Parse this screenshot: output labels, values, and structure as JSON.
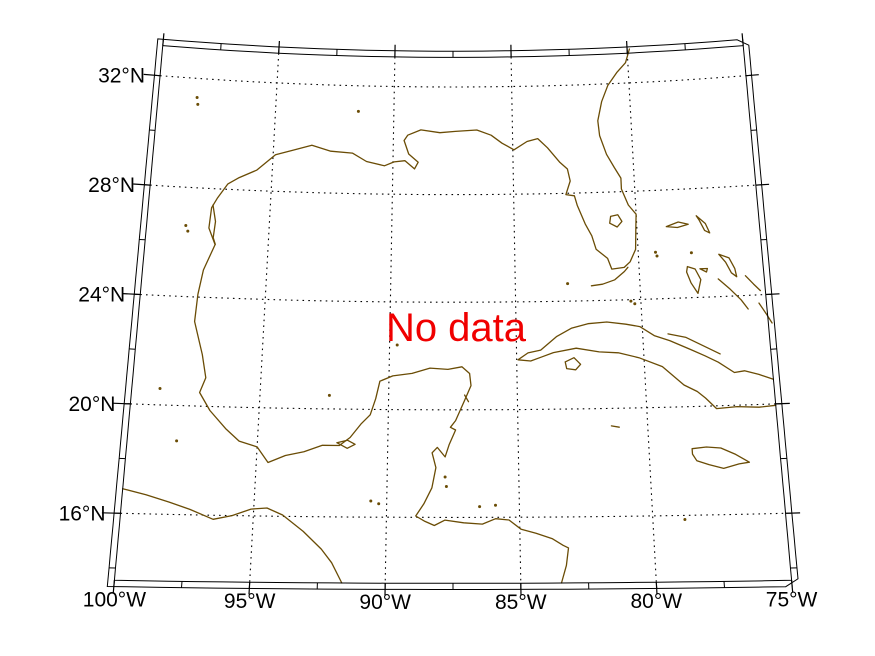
{
  "map": {
    "no_data_label": "No data",
    "colors": {
      "background": "#ffffff",
      "coastline": "#6a4c05",
      "frame": "#000000",
      "graticule": "#000000",
      "tick_label": "#000000",
      "no_data_text": "#f00000"
    },
    "axes": {
      "lat": {
        "tick_values": [
          32,
          28,
          24,
          20,
          16
        ],
        "tick_labels": [
          "32°N",
          "28°N",
          "24°N",
          "20°N",
          "16°N"
        ]
      },
      "lon": {
        "tick_values": [
          -100,
          -95,
          -90,
          -85,
          -80,
          -75
        ],
        "tick_labels": [
          "100°W",
          "95°W",
          "90°W",
          "85°W",
          "80°W",
          "75°W"
        ]
      }
    },
    "graticule": {
      "lat_lines": [
        32,
        28,
        24,
        20,
        16
      ],
      "lon_lines": [
        -95,
        -90,
        -85,
        -80
      ],
      "style": "dotted"
    },
    "coastlines": {
      "us_gulf_atlantic": [
        [
          -97.15,
          25.95
        ],
        [
          -97.45,
          26.55
        ],
        [
          -97.4,
          27.3
        ],
        [
          -97.2,
          27.65
        ],
        [
          -96.8,
          28.2
        ],
        [
          -96.35,
          28.45
        ],
        [
          -95.65,
          28.75
        ],
        [
          -94.9,
          29.35
        ],
        [
          -94.15,
          29.55
        ],
        [
          -93.4,
          29.75
        ],
        [
          -92.6,
          29.55
        ],
        [
          -91.7,
          29.5
        ],
        [
          -91.1,
          29.2
        ],
        [
          -90.35,
          29.05
        ],
        [
          -89.95,
          29.2
        ],
        [
          -89.5,
          29.25
        ],
        [
          -89.1,
          28.95
        ],
        [
          -88.95,
          29.2
        ],
        [
          -89.35,
          29.5
        ],
        [
          -89.55,
          30.0
        ],
        [
          -89.4,
          30.2
        ],
        [
          -88.85,
          30.4
        ],
        [
          -88.05,
          30.3
        ],
        [
          -87.4,
          30.35
        ],
        [
          -86.5,
          30.4
        ],
        [
          -85.9,
          30.2
        ],
        [
          -85.45,
          29.9
        ],
        [
          -84.95,
          29.65
        ],
        [
          -84.4,
          29.95
        ],
        [
          -83.95,
          30.05
        ],
        [
          -83.55,
          29.7
        ],
        [
          -83.05,
          29.15
        ],
        [
          -82.75,
          28.9
        ],
        [
          -82.65,
          28.45
        ],
        [
          -82.85,
          27.95
        ],
        [
          -82.5,
          27.9
        ],
        [
          -82.4,
          27.55
        ],
        [
          -82.1,
          26.85
        ],
        [
          -81.85,
          26.4
        ],
        [
          -81.7,
          25.9
        ],
        [
          -81.25,
          25.55
        ],
        [
          -81.1,
          25.15
        ],
        [
          -80.6,
          25.2
        ],
        [
          -80.35,
          25.4
        ],
        [
          -80.1,
          25.85
        ],
        [
          -80.05,
          26.55
        ],
        [
          -80.0,
          27.15
        ],
        [
          -80.3,
          27.5
        ],
        [
          -80.55,
          28.1
        ],
        [
          -80.55,
          28.5
        ],
        [
          -80.8,
          28.9
        ],
        [
          -81.1,
          29.4
        ],
        [
          -81.35,
          30.1
        ],
        [
          -81.4,
          30.65
        ],
        [
          -81.2,
          31.35
        ],
        [
          -80.9,
          31.95
        ],
        [
          -80.5,
          32.4
        ],
        [
          -80.1,
          32.75
        ],
        [
          -79.9,
          33.25
        ]
      ],
      "mexico_central_america": [
        [
          -97.15,
          25.95
        ],
        [
          -97.55,
          25.0
        ],
        [
          -97.7,
          24.1
        ],
        [
          -97.75,
          23.1
        ],
        [
          -97.5,
          22.35
        ],
        [
          -97.35,
          21.9
        ],
        [
          -97.15,
          21.05
        ],
        [
          -97.35,
          20.5
        ],
        [
          -96.9,
          19.85
        ],
        [
          -96.25,
          19.2
        ],
        [
          -95.7,
          18.75
        ],
        [
          -95.0,
          18.55
        ],
        [
          -94.55,
          17.98
        ],
        [
          -93.9,
          18.25
        ],
        [
          -93.2,
          18.4
        ],
        [
          -92.5,
          18.65
        ],
        [
          -91.85,
          18.65
        ],
        [
          -91.45,
          18.95
        ],
        [
          -91.05,
          19.45
        ],
        [
          -90.7,
          19.8
        ],
        [
          -90.5,
          20.4
        ],
        [
          -90.35,
          21.05
        ],
        [
          -89.85,
          21.25
        ],
        [
          -89.1,
          21.35
        ],
        [
          -88.4,
          21.55
        ],
        [
          -87.7,
          21.5
        ],
        [
          -87.15,
          21.6
        ],
        [
          -86.85,
          21.35
        ],
        [
          -86.8,
          20.9
        ],
        [
          -87.05,
          20.35
        ],
        [
          -87.4,
          19.6
        ],
        [
          -87.6,
          19.35
        ],
        [
          -87.4,
          19.25
        ],
        [
          -87.65,
          18.7
        ],
        [
          -87.8,
          18.25
        ],
        [
          -88.1,
          18.6
        ],
        [
          -88.3,
          18.4
        ],
        [
          -88.15,
          17.85
        ],
        [
          -88.3,
          17.1
        ],
        [
          -88.6,
          16.5
        ],
        [
          -88.9,
          16.05
        ],
        [
          -88.55,
          15.85
        ],
        [
          -88.2,
          15.7
        ],
        [
          -87.8,
          15.9
        ],
        [
          -87.1,
          15.8
        ],
        [
          -86.4,
          15.75
        ],
        [
          -85.9,
          15.95
        ],
        [
          -85.4,
          15.9
        ],
        [
          -84.95,
          15.55
        ],
        [
          -84.4,
          15.4
        ],
        [
          -83.8,
          15.2
        ],
        [
          -83.4,
          14.95
        ],
        [
          -83.2,
          14.85
        ],
        [
          -83.3,
          14.2
        ],
        [
          -83.5,
          13.55
        ]
      ],
      "mexico_pacific": [
        [
          -100.0,
          16.9
        ],
        [
          -99.1,
          16.7
        ],
        [
          -98.2,
          16.45
        ],
        [
          -97.4,
          16.2
        ],
        [
          -96.5,
          15.85
        ],
        [
          -95.8,
          16.0
        ],
        [
          -95.1,
          16.25
        ],
        [
          -94.5,
          16.3
        ],
        [
          -93.9,
          16.05
        ],
        [
          -93.1,
          15.45
        ],
        [
          -92.4,
          14.8
        ],
        [
          -92.0,
          14.3
        ],
        [
          -91.6,
          13.55
        ]
      ],
      "texas_barrier_island": [
        [
          -97.35,
          27.4
        ],
        [
          -97.2,
          26.8
        ],
        [
          -97.25,
          26.2
        ],
        [
          -97.15,
          25.97
        ]
      ],
      "cuba": [
        [
          -75.0,
          20.9
        ],
        [
          -75.55,
          21.1
        ],
        [
          -76.1,
          21.25
        ],
        [
          -76.5,
          21.2
        ],
        [
          -77.1,
          21.6
        ],
        [
          -77.6,
          21.85
        ],
        [
          -78.15,
          22.1
        ],
        [
          -78.95,
          22.45
        ],
        [
          -79.55,
          22.65
        ],
        [
          -80.1,
          23.0
        ],
        [
          -80.65,
          23.1
        ],
        [
          -81.4,
          23.2
        ],
        [
          -82.15,
          23.15
        ],
        [
          -82.8,
          23.0
        ],
        [
          -83.4,
          22.7
        ],
        [
          -84.05,
          22.2
        ],
        [
          -84.55,
          22.1
        ],
        [
          -84.95,
          21.85
        ],
        [
          -84.45,
          21.8
        ],
        [
          -84.0,
          21.95
        ],
        [
          -83.55,
          22.1
        ],
        [
          -82.65,
          22.25
        ],
        [
          -81.75,
          22.1
        ],
        [
          -81.0,
          22.05
        ],
        [
          -80.2,
          21.85
        ],
        [
          -79.3,
          21.5
        ],
        [
          -78.5,
          20.8
        ],
        [
          -78.0,
          20.55
        ],
        [
          -77.7,
          20.3
        ],
        [
          -77.3,
          19.9
        ],
        [
          -76.5,
          19.95
        ],
        [
          -75.65,
          19.9
        ],
        [
          -75.0,
          19.95
        ]
      ],
      "cuba_north_cays": [
        [
          -79.0,
          22.7
        ],
        [
          -78.3,
          22.55
        ],
        [
          -77.6,
          22.2
        ],
        [
          -77.0,
          21.9
        ]
      ],
      "isla_juventud": [
        [
          -83.1,
          21.75
        ],
        [
          -82.75,
          21.9
        ],
        [
          -82.5,
          21.65
        ],
        [
          -82.7,
          21.45
        ],
        [
          -83.05,
          21.5
        ],
        [
          -83.1,
          21.75
        ]
      ],
      "jamaica": [
        [
          -78.35,
          18.45
        ],
        [
          -77.8,
          18.5
        ],
        [
          -77.25,
          18.45
        ],
        [
          -76.7,
          18.2
        ],
        [
          -76.2,
          17.9
        ],
        [
          -76.6,
          17.85
        ],
        [
          -77.2,
          17.7
        ],
        [
          -77.75,
          17.85
        ],
        [
          -78.2,
          18.0
        ],
        [
          -78.35,
          18.25
        ],
        [
          -78.35,
          18.45
        ]
      ],
      "grand_cayman": [
        [
          -81.4,
          19.35
        ],
        [
          -81.1,
          19.3
        ]
      ],
      "florida_keys": [
        [
          -80.45,
          25.2
        ],
        [
          -80.6,
          25.05
        ],
        [
          -81.0,
          24.75
        ],
        [
          -81.5,
          24.6
        ],
        [
          -81.95,
          24.55
        ]
      ],
      "lake_okeechobee": [
        [
          -81.05,
          27.1
        ],
        [
          -80.75,
          27.15
        ],
        [
          -80.6,
          26.9
        ],
        [
          -80.8,
          26.7
        ],
        [
          -81.1,
          26.85
        ],
        [
          -81.05,
          27.1
        ]
      ],
      "terminos_lagoon": [
        [
          -91.95,
          18.75
        ],
        [
          -91.55,
          18.85
        ],
        [
          -91.25,
          18.7
        ],
        [
          -91.55,
          18.55
        ],
        [
          -91.95,
          18.75
        ]
      ],
      "cozumel": [
        [
          -87.05,
          20.55
        ],
        [
          -86.9,
          20.3
        ]
      ],
      "grand_bahama": [
        [
          -78.8,
          26.65
        ],
        [
          -78.3,
          26.8
        ],
        [
          -77.9,
          26.7
        ],
        [
          -78.35,
          26.6
        ],
        [
          -78.8,
          26.65
        ]
      ],
      "abaco": [
        [
          -77.55,
          27.0
        ],
        [
          -77.2,
          26.7
        ],
        [
          -77.05,
          26.35
        ],
        [
          -77.25,
          26.45
        ],
        [
          -77.45,
          26.85
        ],
        [
          -77.55,
          27.0
        ]
      ],
      "andros": [
        [
          -78.05,
          25.15
        ],
        [
          -77.75,
          25.05
        ],
        [
          -77.55,
          24.65
        ],
        [
          -77.7,
          24.15
        ],
        [
          -77.95,
          24.55
        ],
        [
          -78.1,
          24.95
        ],
        [
          -78.05,
          25.15
        ]
      ],
      "new_providence": [
        [
          -77.55,
          25.05
        ],
        [
          -77.25,
          25.05
        ],
        [
          -77.3,
          24.92
        ],
        [
          -77.55,
          25.05
        ]
      ],
      "eleuthera": [
        [
          -76.75,
          25.55
        ],
        [
          -76.35,
          25.4
        ],
        [
          -76.15,
          25.0
        ],
        [
          -76.1,
          24.7
        ],
        [
          -76.3,
          24.85
        ],
        [
          -76.5,
          25.25
        ],
        [
          -76.75,
          25.55
        ]
      ],
      "exuma_chain": [
        [
          -76.85,
          24.65
        ],
        [
          -76.4,
          24.25
        ],
        [
          -76.0,
          23.85
        ],
        [
          -75.75,
          23.5
        ]
      ],
      "cat_island": [
        [
          -75.75,
          24.72
        ],
        [
          -75.45,
          24.4
        ],
        [
          -75.2,
          24.15
        ]
      ],
      "long_island": [
        [
          -75.3,
          23.7
        ],
        [
          -75.05,
          23.3
        ],
        [
          -74.85,
          22.95
        ]
      ]
    },
    "islets_and_lakes": [
      [
        -89.7,
        22.4
      ],
      [
        -92.3,
        20.5
      ],
      [
        -82.9,
        24.65
      ],
      [
        -80.4,
        23.95
      ],
      [
        -80.25,
        23.85
      ],
      [
        -79.3,
        25.72
      ],
      [
        -79.25,
        25.58
      ],
      [
        -77.85,
        25.65
      ],
      [
        -87.8,
        17.5
      ],
      [
        -87.75,
        17.15
      ],
      [
        -78.8,
        15.85
      ],
      [
        -86.5,
        16.4
      ],
      [
        -85.9,
        16.45
      ],
      [
        -98.35,
        31.3
      ],
      [
        -98.3,
        31.05
      ],
      [
        -91.5,
        31.05
      ],
      [
        -98.4,
        26.6
      ],
      [
        -98.3,
        26.4
      ],
      [
        -98.9,
        20.6
      ],
      [
        -98.1,
        18.7
      ],
      [
        -90.6,
        16.6
      ],
      [
        -90.3,
        16.5
      ]
    ]
  }
}
